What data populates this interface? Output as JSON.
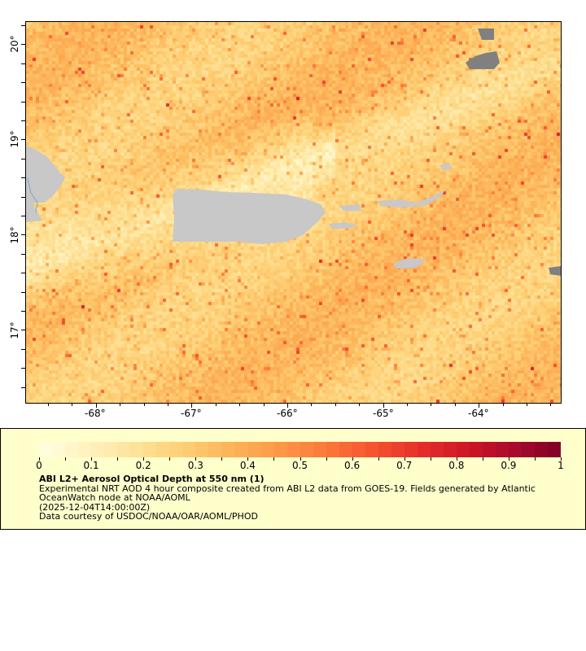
{
  "map": {
    "lon_ticks": [
      "-68°",
      "-67°",
      "-66°",
      "-65°",
      "-64°"
    ],
    "lat_ticks": [
      "20°",
      "19°",
      "18°",
      "17°"
    ],
    "lon_range": [
      -68.75,
      -63.15
    ],
    "lat_range": [
      16.33,
      20.25
    ],
    "land_color": "#c8c8c8",
    "missing_color": "#808080"
  },
  "colorbar": {
    "labels": [
      "0",
      "0.1",
      "0.2",
      "0.3",
      "0.4",
      "0.5",
      "0.6",
      "0.7",
      "0.8",
      "0.9",
      "1"
    ],
    "range": [
      0,
      1
    ],
    "colors": [
      "#ffffe0",
      "#fff3c0",
      "#fee39a",
      "#fed076",
      "#fdb55a",
      "#fd9a48",
      "#fc7a3a",
      "#f5542e",
      "#e6302a",
      "#d01626",
      "#a80a2c",
      "#800026"
    ]
  },
  "legend": {
    "title": "ABI L2+ Aerosol Optical Depth at 550 nm (1)",
    "lines": [
      "Experimental NRT AOD 4 hour composite created from ABI L2 data from GOES-19. Fields generated by Atlantic",
      "OceanWatch node at NOAA/AOML",
      "(2025-12-04T14:00:00Z)",
      "Data courtesy of USDOC/NOAA/OAR/AOML/PHOD"
    ]
  }
}
